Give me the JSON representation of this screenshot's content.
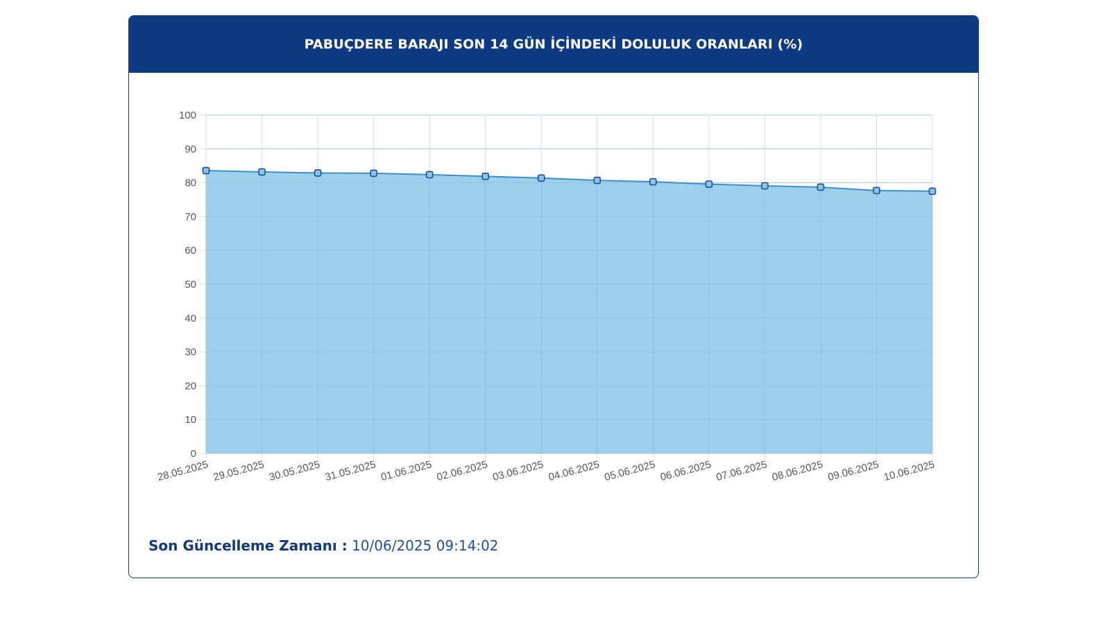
{
  "title": "PABUÇDERE BARAJI SON 14 GÜN İÇİNDEKİ DOLULUK ORANLARI (%)",
  "footer": {
    "label": "Son Güncelleme Zamanı :",
    "value": "10/06/2025 09:14:02"
  },
  "colors": {
    "header": "#0f3a82",
    "area_fill": "#9dd0ec",
    "line": "#3d8fc9",
    "marker_fill": "#8cc3ea",
    "marker_stroke": "#1d4f8f",
    "grid": "#dcdcdc"
  },
  "chart_data": {
    "type": "area",
    "categories": [
      "28.05.2025",
      "29.05.2025",
      "30.05.2025",
      "31.05.2025",
      "01.06.2025",
      "02.06.2025",
      "03.06.2025",
      "04.06.2025",
      "05.06.2025",
      "06.06.2025",
      "07.06.2025",
      "08.06.2025",
      "09.06.2025",
      "10.06.2025"
    ],
    "series": [
      {
        "values": [
          83.6,
          83.2,
          82.9,
          82.8,
          82.4,
          81.9,
          81.4,
          80.7,
          80.3,
          79.6,
          79.1,
          78.7,
          77.7,
          77.5
        ]
      }
    ],
    "yticks": [
      "0",
      "10",
      "20",
      "30",
      "40",
      "50",
      "60",
      "70",
      "80",
      "90",
      "100"
    ],
    "ylim": [
      0,
      100
    ],
    "grid": true,
    "legend": "none"
  }
}
